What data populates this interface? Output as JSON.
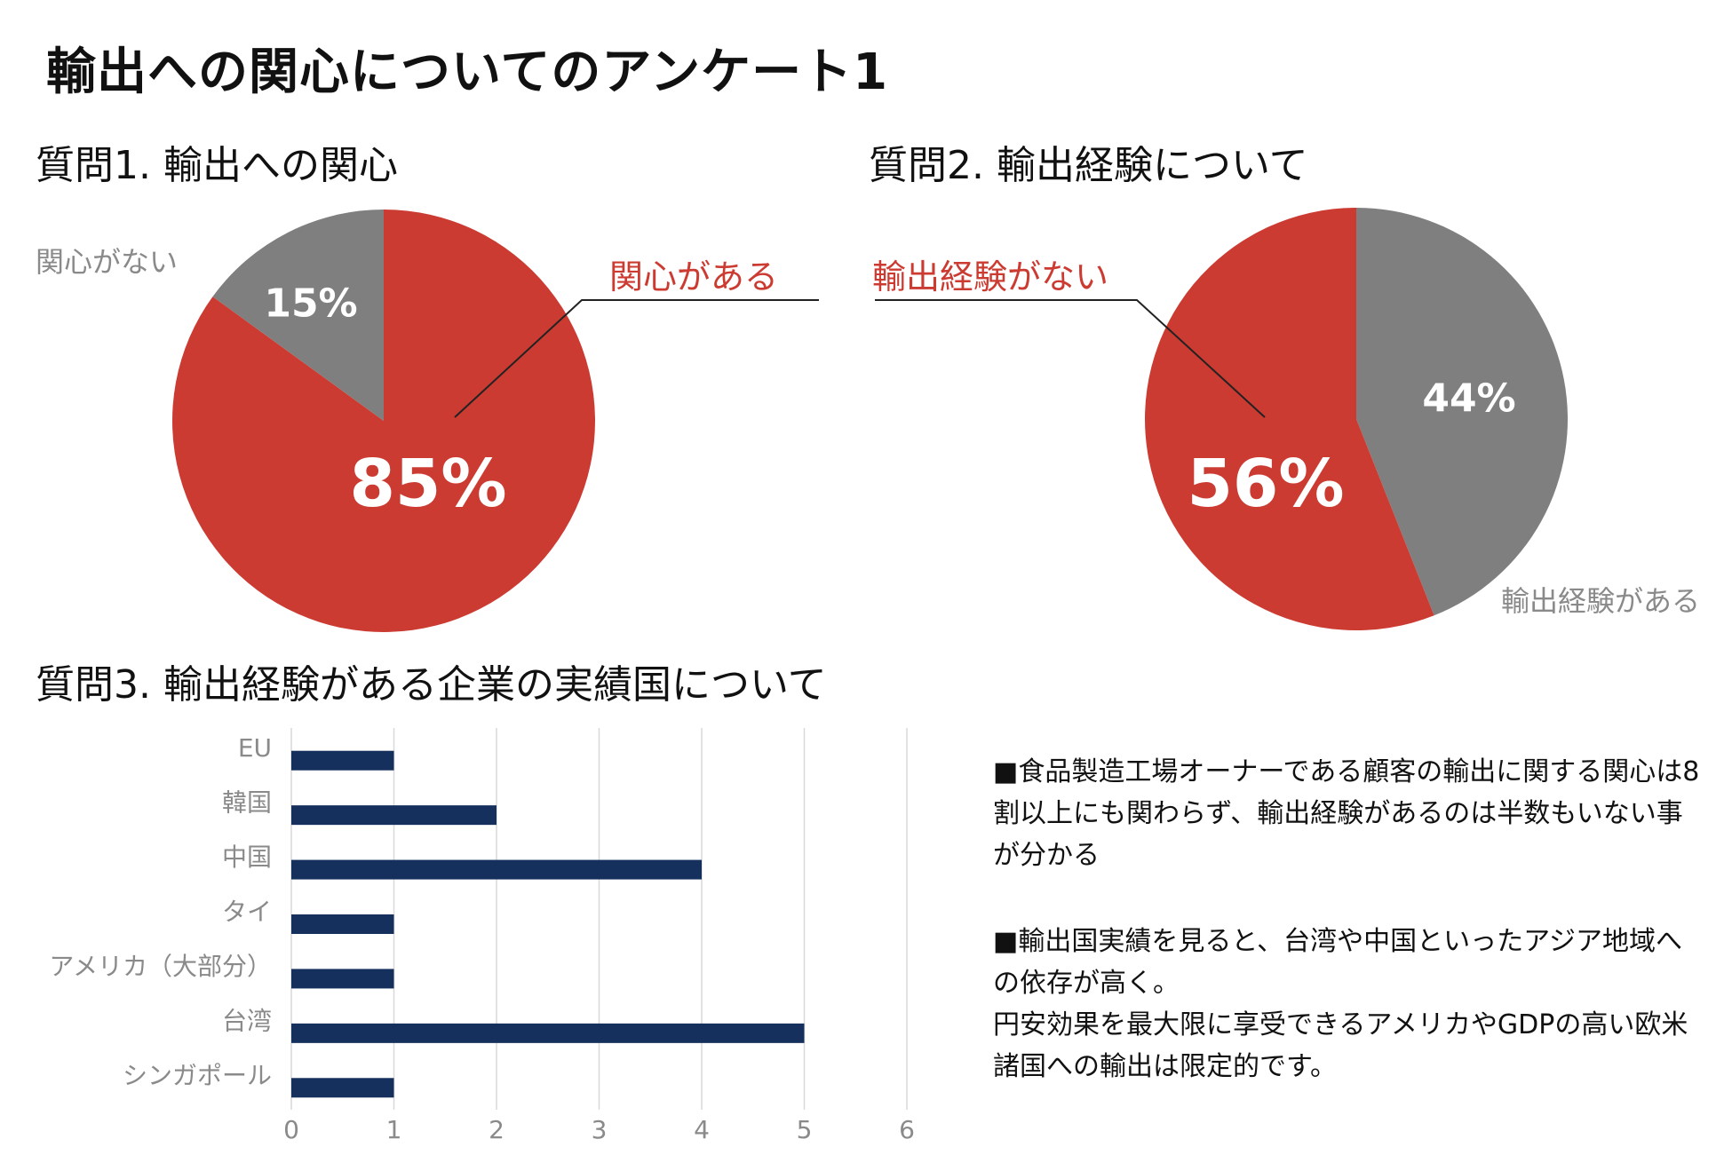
{
  "title": "輸出への関心についてのアンケート1",
  "colors": {
    "accent": "#cc3b32",
    "gray": "#7f7f7f",
    "navy": "#15305c",
    "grid": "#d9d9d9"
  },
  "q1": {
    "title": "質問1. 輸出への関心",
    "yes_label": "関心がある",
    "no_label": "関心がない"
  },
  "q2": {
    "title": "質問2. 輸出経験について",
    "no_label": "輸出経験がない",
    "yes_label": "輸出経験がある"
  },
  "q3": {
    "title": "質問3. 輸出経験がある企業の実績国について"
  },
  "notes": [
    "■食品製造工場オーナーである顧客の輸出に関する関心は8割以上にも関わらず、輸出経験があるのは半数もいない事が分かる",
    "■輸出国実績を見ると、台湾や中国といったアジア地域への依存が高く。",
    "円安効果を最大限に享受できるアメリカやGDPの高い欧米諸国への輸出は限定的です。"
  ],
  "chart_data": [
    {
      "type": "pie",
      "title": "質問1. 輸出への関心",
      "slices": [
        {
          "label": "関心がある",
          "value": 85,
          "display": "85%",
          "color": "#cc3b32"
        },
        {
          "label": "関心がない",
          "value": 15,
          "display": "15%",
          "color": "#7f7f7f"
        }
      ]
    },
    {
      "type": "pie",
      "title": "質問2. 輸出経験について",
      "slices": [
        {
          "label": "輸出経験がある",
          "value": 44,
          "display": "44%",
          "color": "#7f7f7f"
        },
        {
          "label": "輸出経験がない",
          "value": 56,
          "display": "56%",
          "color": "#cc3b32"
        }
      ]
    },
    {
      "type": "bar",
      "orientation": "horizontal",
      "title": "質問3. 輸出経験がある企業の実績国について",
      "categories": [
        "EU",
        "韓国",
        "中国",
        "タイ",
        "アメリカ（大部分）",
        "台湾",
        "シンガポール"
      ],
      "values": [
        1,
        2,
        4,
        1,
        1,
        5,
        1
      ],
      "xlim": [
        0,
        6
      ],
      "xticks": [
        "0",
        "1",
        "2",
        "3",
        "4",
        "5",
        "6"
      ],
      "color": "#15305c",
      "grid": true
    }
  ]
}
